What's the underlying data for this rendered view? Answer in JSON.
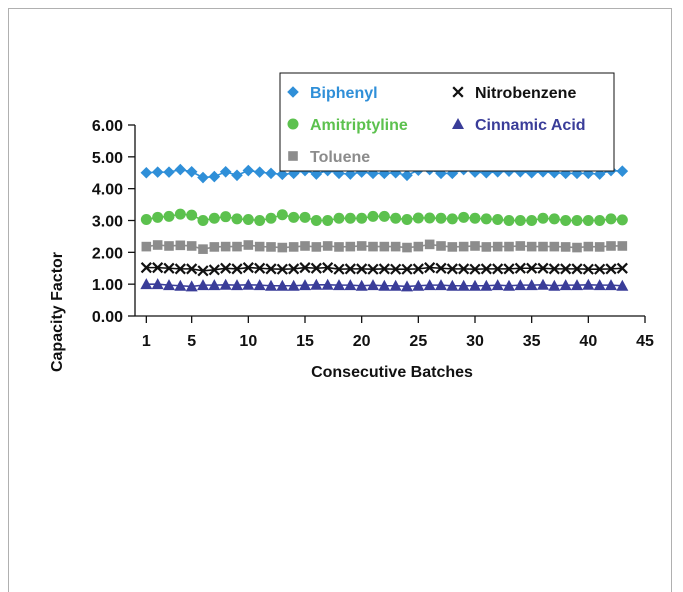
{
  "chart_data": {
    "type": "scatter",
    "title": "",
    "xlabel": "Consecutive Batches",
    "ylabel": "Capacity Factor",
    "xlim": [
      0,
      45
    ],
    "ylim": [
      0,
      6
    ],
    "x_ticks": [
      1,
      5,
      10,
      15,
      20,
      25,
      30,
      35,
      40,
      45
    ],
    "y_ticks": [
      "0.00",
      "1.00",
      "2.00",
      "3.00",
      "4.00",
      "5.00",
      "6.00"
    ],
    "y_tick_values": [
      0,
      1,
      2,
      3,
      4,
      5,
      6
    ],
    "grid": false,
    "legend_position": "top-right",
    "x": [
      1,
      2,
      3,
      4,
      5,
      6,
      7,
      8,
      9,
      10,
      11,
      12,
      13,
      14,
      15,
      16,
      17,
      18,
      19,
      20,
      21,
      22,
      23,
      24,
      25,
      26,
      27,
      28,
      29,
      30,
      31,
      32,
      33,
      34,
      35,
      36,
      37,
      38,
      39,
      40,
      41,
      42,
      43
    ],
    "series": [
      {
        "name": "Biphenyl",
        "color": "#2f8fd8",
        "marker": "diamond",
        "values": [
          4.5,
          4.52,
          4.52,
          4.6,
          4.53,
          4.35,
          4.38,
          4.53,
          4.42,
          4.57,
          4.52,
          4.48,
          4.45,
          4.48,
          4.57,
          4.46,
          4.57,
          4.48,
          4.46,
          4.52,
          4.48,
          4.48,
          4.5,
          4.42,
          4.58,
          4.6,
          4.48,
          4.48,
          4.6,
          4.52,
          4.5,
          4.53,
          4.55,
          4.53,
          4.5,
          4.53,
          4.5,
          4.48,
          4.48,
          4.48,
          4.46,
          4.57,
          4.55
        ]
      },
      {
        "name": "Nitrobenzene",
        "color": "#111111",
        "marker": "x",
        "values": [
          1.52,
          1.52,
          1.5,
          1.48,
          1.48,
          1.42,
          1.45,
          1.5,
          1.48,
          1.52,
          1.5,
          1.48,
          1.47,
          1.48,
          1.52,
          1.5,
          1.52,
          1.47,
          1.48,
          1.48,
          1.47,
          1.48,
          1.47,
          1.47,
          1.48,
          1.52,
          1.5,
          1.48,
          1.48,
          1.47,
          1.48,
          1.48,
          1.48,
          1.5,
          1.5,
          1.5,
          1.48,
          1.48,
          1.48,
          1.47,
          1.47,
          1.48,
          1.5
        ]
      },
      {
        "name": "Amitriptyline",
        "color": "#5cc14e",
        "marker": "circle",
        "values": [
          3.03,
          3.1,
          3.13,
          3.2,
          3.17,
          3.0,
          3.07,
          3.12,
          3.05,
          3.03,
          3.0,
          3.07,
          3.18,
          3.1,
          3.1,
          3.0,
          3.0,
          3.07,
          3.07,
          3.07,
          3.13,
          3.13,
          3.07,
          3.03,
          3.08,
          3.08,
          3.07,
          3.05,
          3.1,
          3.07,
          3.05,
          3.03,
          3.0,
          3.0,
          3.0,
          3.07,
          3.05,
          3.0,
          3.0,
          3.0,
          3.0,
          3.05,
          3.02
        ]
      },
      {
        "name": "Cinnamic Acid",
        "color": "#3a3d99",
        "marker": "triangle",
        "values": [
          1.0,
          1.0,
          0.97,
          0.95,
          0.93,
          0.97,
          0.97,
          0.98,
          0.97,
          0.98,
          0.97,
          0.95,
          0.95,
          0.95,
          0.97,
          0.98,
          0.98,
          0.97,
          0.97,
          0.95,
          0.97,
          0.95,
          0.95,
          0.93,
          0.95,
          0.97,
          0.97,
          0.95,
          0.95,
          0.95,
          0.95,
          0.97,
          0.95,
          0.97,
          0.97,
          0.98,
          0.95,
          0.97,
          0.97,
          0.98,
          0.97,
          0.97,
          0.95
        ]
      },
      {
        "name": "Toluene",
        "color": "#8c8c8c",
        "marker": "square",
        "values": [
          2.18,
          2.23,
          2.2,
          2.22,
          2.2,
          2.1,
          2.17,
          2.18,
          2.18,
          2.23,
          2.18,
          2.17,
          2.15,
          2.17,
          2.2,
          2.17,
          2.2,
          2.17,
          2.18,
          2.2,
          2.18,
          2.18,
          2.18,
          2.15,
          2.18,
          2.25,
          2.2,
          2.17,
          2.18,
          2.2,
          2.17,
          2.18,
          2.18,
          2.2,
          2.18,
          2.18,
          2.18,
          2.17,
          2.15,
          2.18,
          2.17,
          2.2,
          2.2
        ]
      }
    ]
  }
}
